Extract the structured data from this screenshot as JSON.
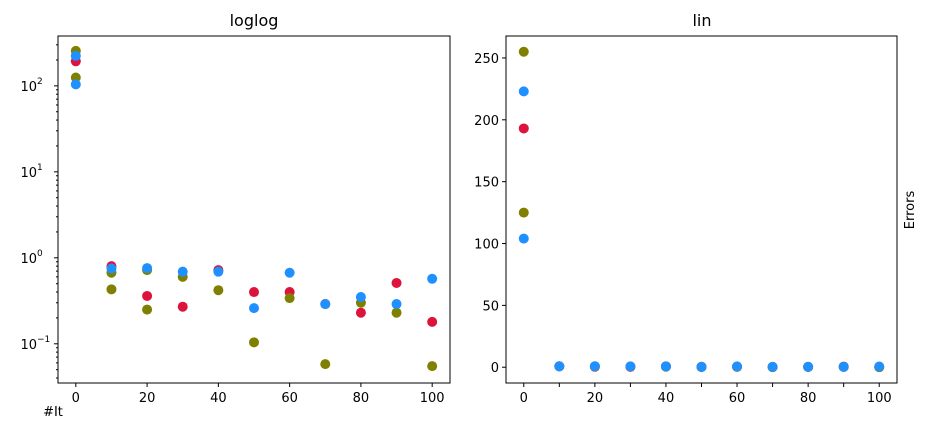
{
  "colors": {
    "series_a": "#dc143c",
    "series_b": "#808000",
    "series_c": "#1e90ff"
  },
  "chart_data": [
    {
      "type": "scatter",
      "title": "loglog",
      "xlabel": "#It",
      "ylabel": "",
      "xscale": "linear",
      "yscale": "log",
      "xlim": [
        -5,
        105
      ],
      "ylim": [
        0.035,
        380
      ],
      "xticks": [
        0,
        20,
        40,
        60,
        80,
        100
      ],
      "xtick_labels": [
        "0",
        "20",
        "40",
        "60",
        "80",
        "100"
      ],
      "yticks": [
        0.1,
        1,
        10,
        100
      ],
      "ytick_labels": [
        "10",
        "10",
        "10",
        "10"
      ],
      "ytick_exponents": [
        "−1",
        "0",
        "1",
        "2"
      ],
      "grid": false,
      "series": [
        {
          "color": "#dc143c",
          "x": [
            0,
            10,
            20,
            30,
            40,
            50,
            60,
            70,
            80,
            90,
            100
          ],
          "y": [
            193,
            0.8,
            0.36,
            0.27,
            0.72,
            0.4,
            0.4,
            0.29,
            0.23,
            0.51,
            0.18
          ]
        },
        {
          "color": "#808000",
          "x": [
            0,
            0,
            10,
            10,
            20,
            20,
            30,
            40,
            50,
            60,
            70,
            80,
            90,
            100
          ],
          "y": [
            255,
            125,
            0.67,
            0.43,
            0.72,
            0.25,
            0.6,
            0.42,
            0.104,
            0.34,
            0.058,
            0.3,
            0.23,
            0.055
          ]
        },
        {
          "color": "#1e90ff",
          "x": [
            0,
            0,
            10,
            20,
            30,
            40,
            50,
            60,
            70,
            80,
            90,
            100
          ],
          "y": [
            223,
            104,
            0.75,
            0.76,
            0.69,
            0.69,
            0.26,
            0.67,
            0.29,
            0.35,
            0.29,
            0.57
          ]
        }
      ]
    },
    {
      "type": "scatter",
      "title": "lin",
      "xlabel": "",
      "ylabel": "Errors",
      "ylabel_position": "right",
      "xscale": "linear",
      "yscale": "linear",
      "xlim": [
        -5,
        105
      ],
      "ylim": [
        -12.75,
        267.75
      ],
      "xticks": [
        0,
        10,
        20,
        30,
        40,
        50,
        60,
        70,
        80,
        90,
        100
      ],
      "xtick_labels": [
        "0",
        "",
        "20",
        "",
        "40",
        "",
        "60",
        "",
        "80",
        "",
        "100"
      ],
      "yticks": [
        0,
        50,
        100,
        150,
        200,
        250
      ],
      "ytick_labels": [
        "0",
        "50",
        "100",
        "150",
        "200",
        "250"
      ],
      "grid": false,
      "series": [
        {
          "color": "#dc143c",
          "x": [
            0,
            10,
            20,
            30,
            40,
            50,
            60,
            70,
            80,
            90,
            100
          ],
          "y": [
            193,
            0.8,
            0.36,
            0.27,
            0.72,
            0.4,
            0.4,
            0.29,
            0.23,
            0.51,
            0.18
          ]
        },
        {
          "color": "#808000",
          "x": [
            0,
            0,
            10,
            20,
            30,
            40,
            50,
            60,
            70,
            80,
            90,
            100
          ],
          "y": [
            255,
            125,
            0.67,
            0.72,
            0.6,
            0.42,
            0.104,
            0.34,
            0.058,
            0.3,
            0.23,
            0.055
          ]
        },
        {
          "color": "#1e90ff",
          "x": [
            0,
            0,
            10,
            20,
            30,
            40,
            50,
            60,
            70,
            80,
            90,
            100
          ],
          "y": [
            223,
            104,
            0.75,
            0.76,
            0.69,
            0.69,
            0.26,
            0.67,
            0.29,
            0.35,
            0.29,
            0.57
          ]
        }
      ]
    }
  ]
}
